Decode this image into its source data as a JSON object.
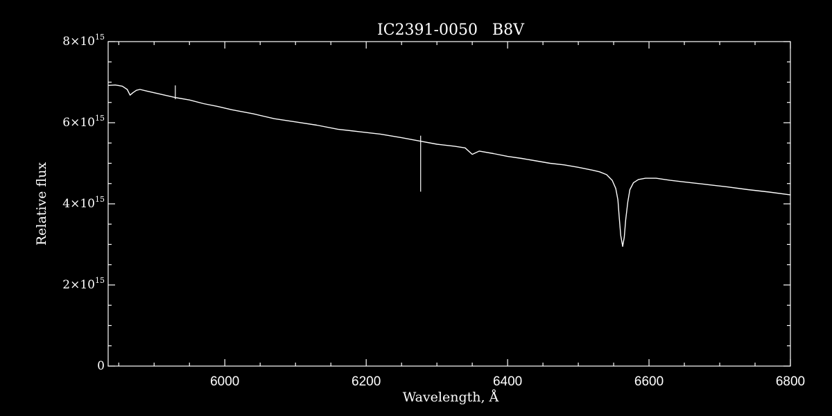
{
  "chart_data": {
    "type": "line",
    "title": "IC2391-0050   B8V",
    "xlabel": "Wavelength, Å",
    "ylabel": "Relative flux",
    "xlim": [
      5835,
      6800
    ],
    "ylim": [
      0,
      8000000000000000.0
    ],
    "x_ticks": [
      6000,
      6200,
      6400,
      6600,
      6800
    ],
    "x_minor_step": 50,
    "y_ticks": [
      {
        "value": 0,
        "mantissa": "0",
        "exponent": ""
      },
      {
        "value": 2000000000000000.0,
        "mantissa": "2×10",
        "exponent": "15"
      },
      {
        "value": 4000000000000000.0,
        "mantissa": "4×10",
        "exponent": "15"
      },
      {
        "value": 6000000000000000.0,
        "mantissa": "6×10",
        "exponent": "15"
      },
      {
        "value": 8000000000000000.0,
        "mantissa": "8×10",
        "exponent": "15"
      }
    ],
    "y_minor_step": 500000000000000.0,
    "grid": false,
    "colors": {
      "background": "#000000",
      "foreground": "#ffffff"
    },
    "series": [
      {
        "x": [
          5835,
          5845,
          5855,
          5862,
          5866,
          5870,
          5875,
          5880,
          5890,
          5910,
          5930,
          5950,
          5970,
          5990,
          6010,
          6040,
          6070,
          6100,
          6130,
          6160,
          6190,
          6220,
          6250,
          6275,
          6300,
          6325,
          6340,
          6350,
          6360,
          6380,
          6400,
          6420,
          6440,
          6460,
          6480,
          6500,
          6520,
          6530,
          6540,
          6548,
          6553,
          6556,
          6558,
          6560,
          6562.8,
          6565,
          6567,
          6570,
          6573,
          6578,
          6585,
          6595,
          6610,
          6630,
          6650,
          6680,
          6710,
          6740,
          6770,
          6800
        ],
        "y": [
          6920000000000000.0,
          6930000000000000.0,
          6900000000000000.0,
          6820000000000000.0,
          6680000000000000.0,
          6740000000000000.0,
          6800000000000000.0,
          6820000000000000.0,
          6780000000000000.0,
          6700000000000000.0,
          6620000000000000.0,
          6560000000000000.0,
          6470000000000000.0,
          6400000000000000.0,
          6320000000000000.0,
          6220000000000000.0,
          6100000000000000.0,
          6020000000000000.0,
          5940000000000000.0,
          5840000000000000.0,
          5780000000000000.0,
          5720000000000000.0,
          5630000000000000.0,
          5550000000000000.0,
          5470000000000000.0,
          5420000000000000.0,
          5380000000000000.0,
          5220000000000000.0,
          5300000000000000.0,
          5240000000000000.0,
          5170000000000000.0,
          5120000000000000.0,
          5060000000000000.0,
          5000000000000000.0,
          4960000000000000.0,
          4900000000000000.0,
          4830000000000000.0,
          4790000000000000.0,
          4720000000000000.0,
          4580000000000000.0,
          4380000000000000.0,
          4100000000000000.0,
          3650000000000000.0,
          3220000000000000.0,
          2950000000000000.0,
          3180000000000000.0,
          3600000000000000.0,
          4050000000000000.0,
          4350000000000000.0,
          4520000000000000.0,
          4600000000000000.0,
          4630000000000000.0,
          4630000000000000.0,
          4580000000000000.0,
          4540000000000000.0,
          4480000000000000.0,
          4420000000000000.0,
          4350000000000000.0,
          4290000000000000.0,
          4220000000000000.0
        ]
      }
    ],
    "spikes": [
      {
        "x": 5930,
        "y_from": 6580000000000000.0,
        "y_to": 6920000000000000.0
      },
      {
        "x": 6277,
        "y_from": 4300000000000000.0,
        "y_to": 5680000000000000.0
      }
    ]
  }
}
